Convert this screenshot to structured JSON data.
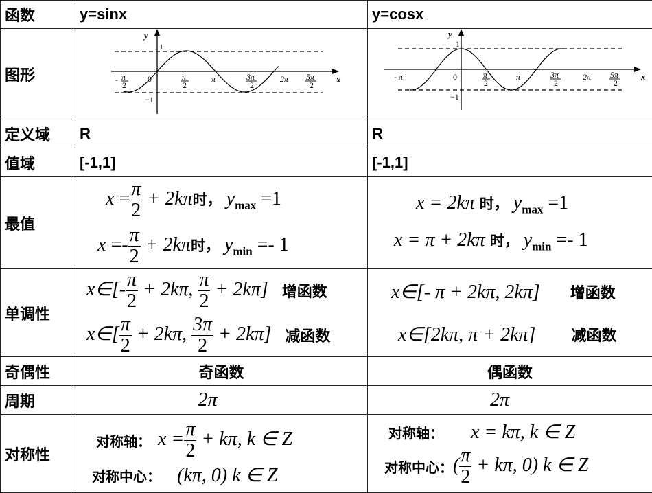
{
  "header": {
    "label": "函数",
    "sin": "y=sinx",
    "cos": "y=cosx"
  },
  "graph": {
    "label": "图形",
    "sin_ticks": [
      "-",
      "π",
      "2",
      "0",
      "π",
      "2",
      "π",
      "3π",
      "2",
      "2π",
      "5π",
      "2"
    ],
    "cos_ticks": [
      "- π",
      "0",
      "π",
      "2",
      "π",
      "3π",
      "2",
      "2π",
      "5π",
      "2"
    ],
    "axis_x": "x",
    "axis_y": "y",
    "one": "1",
    "neg_one": "−1"
  },
  "domain": {
    "label": "定义域",
    "sin": "R",
    "cos": "R"
  },
  "range": {
    "label": "值域",
    "sin": "[-1,1]",
    "cos": "[-1,1]"
  },
  "extrema": {
    "label": "最值",
    "x": "x",
    "eq": "=",
    "plus2kpi": "+ 2kπ",
    "shi": "时，",
    "y": "y",
    "max": "max",
    "min": "min",
    "one": "=1",
    "neg_one": "=- 1",
    "pi": "π",
    "two": "2",
    "neg": "=-",
    "cos_max_x": "x = 2kπ",
    "cos_min_x": "x = π + 2kπ"
  },
  "monotonic": {
    "label": "单调性",
    "inc": "增函数",
    "dec": "减函数",
    "cos_inc": "x∈[- π + 2kπ, 2kπ]",
    "cos_dec": "x∈[2kπ, π + 2kπ]"
  },
  "parity": {
    "label": "奇偶性",
    "sin": "奇函数",
    "cos": "偶函数"
  },
  "period": {
    "label": "周期",
    "sin": "2π",
    "cos": "2π"
  },
  "symmetry": {
    "label": "对称性",
    "axis_label": "对称轴：",
    "center_label": "对称中心：",
    "sin_axis_tail": "+ kπ, k ∈ Z",
    "sin_center": "(kπ, 0)  k ∈ Z",
    "cos_axis": "x = kπ, k ∈ Z",
    "cos_center_tail": "+ kπ, 0)  k ∈ Z"
  }
}
